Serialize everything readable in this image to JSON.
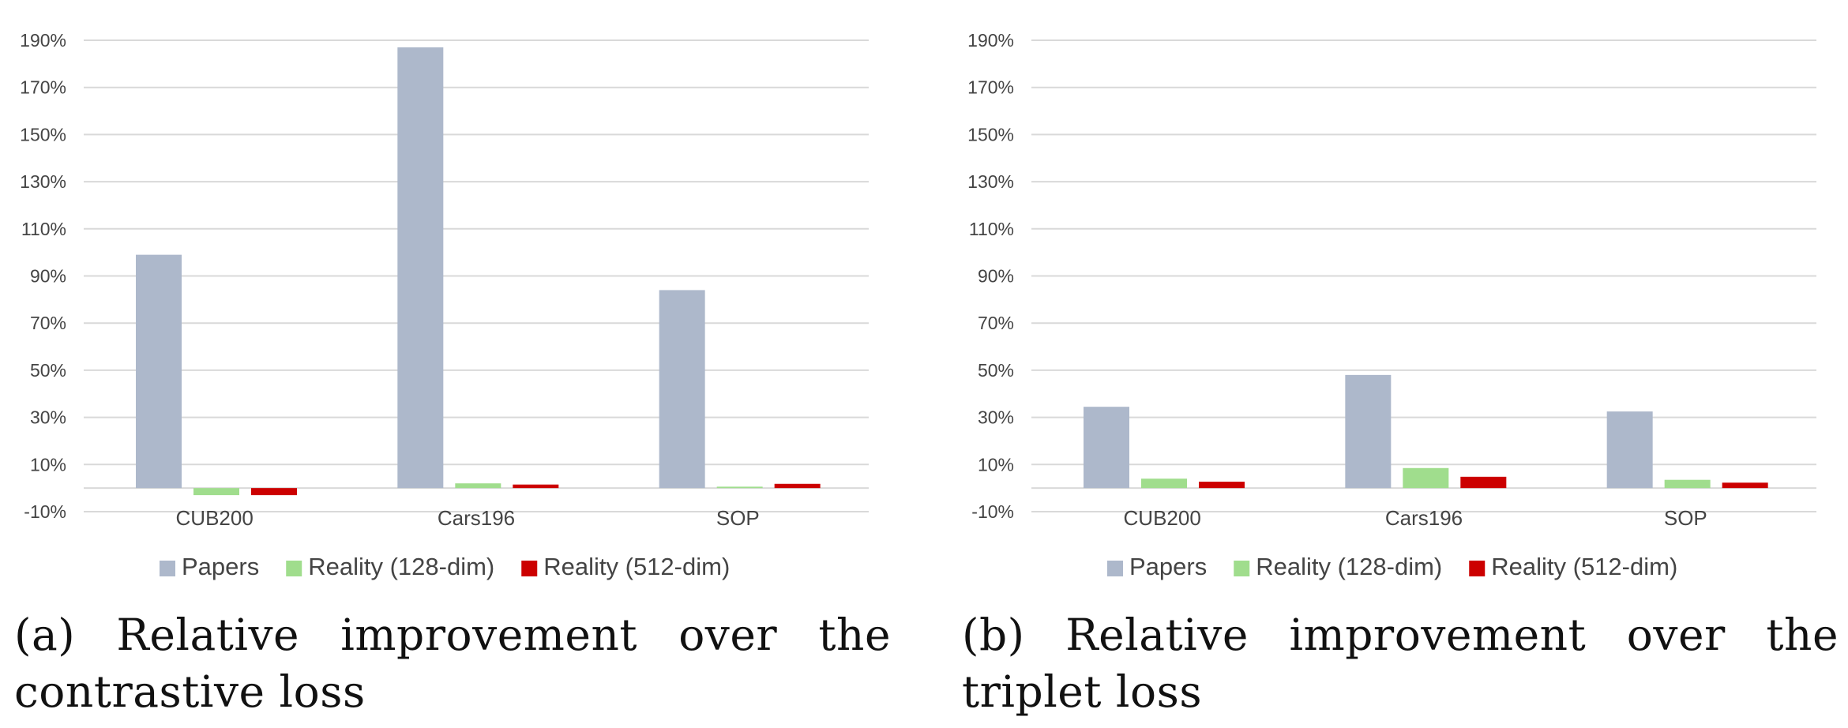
{
  "chart_data": [
    {
      "type": "bar",
      "caption": "(a) Relative improvement over the contrastive loss",
      "categories": [
        "CUB200",
        "Cars196",
        "SOP"
      ],
      "series": [
        {
          "name": "Papers",
          "color": "#ADB8CB",
          "values": [
            99,
            187,
            84
          ]
        },
        {
          "name": "Reality (128-dim)",
          "color": "#A0DD8D",
          "values": [
            -3,
            2,
            0.6
          ]
        },
        {
          "name": "Reality (512-dim)",
          "color": "#CC0000",
          "values": [
            -3,
            1.5,
            1.8
          ]
        }
      ],
      "yticks": [
        "190%",
        "170%",
        "150%",
        "130%",
        "110%",
        "90%",
        "70%",
        "50%",
        "30%",
        "10%",
        "-10%"
      ],
      "ylim": [
        -10,
        190
      ],
      "grid": true,
      "legend": "bottom"
    },
    {
      "type": "bar",
      "caption": "(b) Relative improvement over the triplet loss",
      "categories": [
        "CUB200",
        "Cars196",
        "SOP"
      ],
      "series": [
        {
          "name": "Papers",
          "color": "#ADB8CB",
          "values": [
            34.5,
            48,
            32.5
          ]
        },
        {
          "name": "Reality (128-dim)",
          "color": "#A0DD8D",
          "values": [
            4,
            8.5,
            3.5
          ]
        },
        {
          "name": "Reality (512-dim)",
          "color": "#CC0000",
          "values": [
            2.7,
            4.8,
            2.3
          ]
        }
      ],
      "yticks": [
        "190%",
        "170%",
        "150%",
        "130%",
        "110%",
        "90%",
        "70%",
        "50%",
        "30%",
        "10%",
        "-10%"
      ],
      "ylim": [
        -10,
        190
      ],
      "grid": true,
      "legend": "bottom"
    }
  ]
}
